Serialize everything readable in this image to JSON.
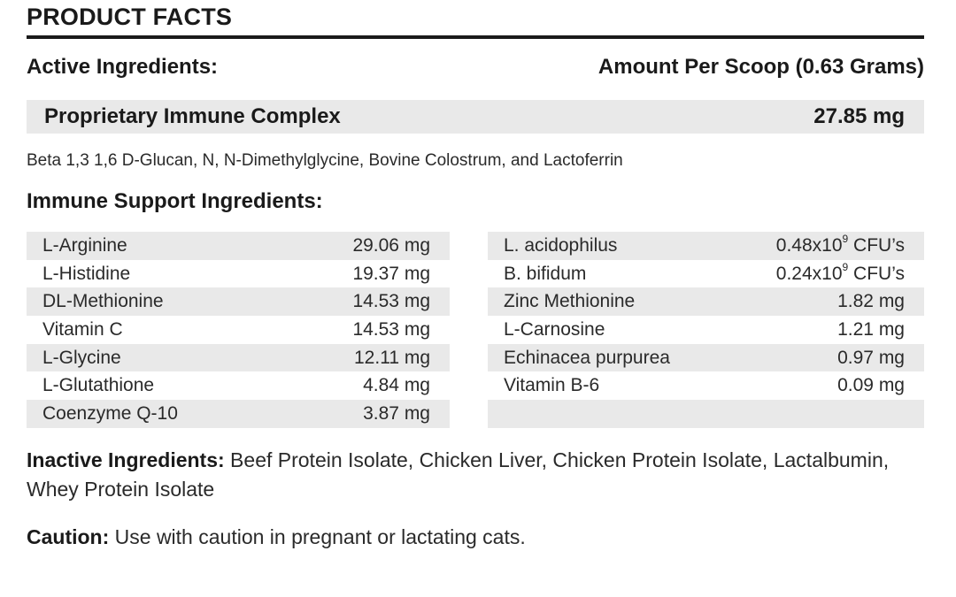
{
  "title": "PRODUCT FACTS",
  "active": {
    "header_left": "Active Ingredients:",
    "header_right": "Amount Per Scoop (0.63 Grams)",
    "blend_name": "Proprietary Immune Complex",
    "blend_amount": "27.85 mg",
    "blend_description": "Beta 1,3 1,6 D-Glucan, N, N-Dimethylglycine, Bovine Colostrum, and Lactoferrin"
  },
  "support": {
    "header": "Immune Support Ingredients:",
    "left": [
      {
        "name": "L-Arginine",
        "amount": "29.06 mg"
      },
      {
        "name": "L-Histidine",
        "amount": "19.37 mg"
      },
      {
        "name": "DL-Methionine",
        "amount": "14.53 mg"
      },
      {
        "name": "Vitamin C",
        "amount": "14.53 mg"
      },
      {
        "name": "L-Glycine",
        "amount": "12.11 mg"
      },
      {
        "name": "L-Glutathione",
        "amount": "4.84 mg"
      },
      {
        "name": "Coenzyme Q-10",
        "amount": "3.87 mg"
      }
    ],
    "right": [
      {
        "name": "L. acidophilus",
        "amount_base": "0.48x10",
        "amount_exp": "9",
        "amount_unit": " CFU’s"
      },
      {
        "name": "B. bifidum",
        "amount_base": "0.24x10",
        "amount_exp": "9",
        "amount_unit": " CFU’s"
      },
      {
        "name": "Zinc Methionine",
        "amount": "1.82 mg"
      },
      {
        "name": "L-Carnosine",
        "amount": "1.21 mg"
      },
      {
        "name": "Echinacea purpurea",
        "amount": "0.97 mg"
      },
      {
        "name": "Vitamin B-6",
        "amount": "0.09 mg"
      }
    ]
  },
  "inactive": {
    "label": "Inactive Ingredients:",
    "text": " Beef Protein Isolate, Chicken Liver, Chicken Protein Isolate, Lactalbumin, Whey Protein Isolate"
  },
  "caution": {
    "label": "Caution:",
    "text": " Use with caution in pregnant or lactating cats."
  }
}
